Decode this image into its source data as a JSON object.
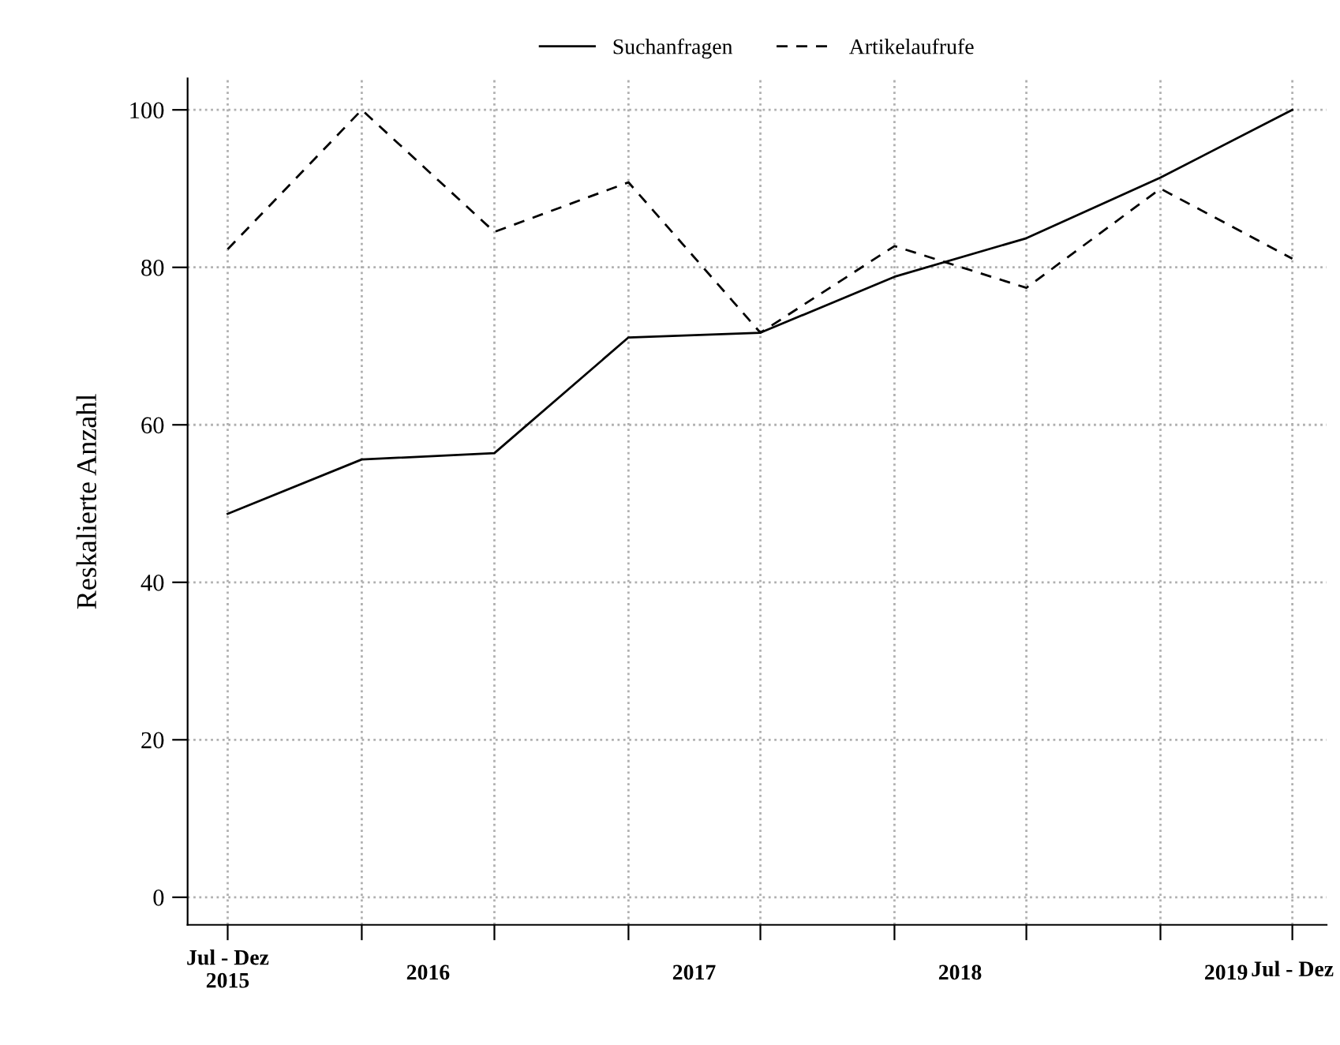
{
  "chart_data": {
    "type": "line",
    "ylabel": "Reskalierte Anzahl",
    "x": [
      "2015-07-01",
      "2016-01-01",
      "2016-07-01",
      "2017-01-01",
      "2017-07-01",
      "2018-01-01",
      "2018-07-01",
      "2019-01-01",
      "2019-07-01"
    ],
    "xlim": [
      "2015-05-07",
      "2019-08-17"
    ],
    "ylim": [
      -3.5,
      104
    ],
    "xticks": [
      {
        "value": "2015-07-01",
        "label": "Jul - Dez\n2015"
      },
      {
        "value": "2016-01-01",
        "label": null
      },
      {
        "value": "2016-07-01",
        "label": null
      },
      {
        "value": "2017-01-01",
        "label": null
      },
      {
        "value": "2017-07-01",
        "label": null
      },
      {
        "value": "2018-01-01",
        "label": null
      },
      {
        "value": "2018-07-01",
        "label": null
      },
      {
        "value": "2019-01-01",
        "label": null
      },
      {
        "value": "2019-07-01",
        "label": "Jul - Dez"
      },
      {
        "value": "2016-04-01",
        "label": "2016"
      },
      {
        "value": "2017-04-01",
        "label": "2017"
      },
      {
        "value": "2018-04-01",
        "label": "2018"
      },
      {
        "value": "2019-04-01",
        "label": "2019"
      }
    ],
    "yticks": [
      0,
      20,
      40,
      60,
      80,
      100
    ],
    "grid": true,
    "legend": "top",
    "marker": "none",
    "series": [
      {
        "name": "Suchanfragen",
        "color": "#000000",
        "line_style": "solid",
        "values": [
          48.7,
          55.6,
          56.4,
          71.1,
          71.7,
          78.8,
          83.7,
          91.4,
          100
        ]
      },
      {
        "name": "Artikelaufrufe",
        "color": "#000000",
        "line_style": "dashed",
        "values": [
          82.3,
          100,
          84.5,
          90.8,
          71.7,
          82.7,
          77.4,
          90,
          81.1
        ]
      }
    ]
  }
}
